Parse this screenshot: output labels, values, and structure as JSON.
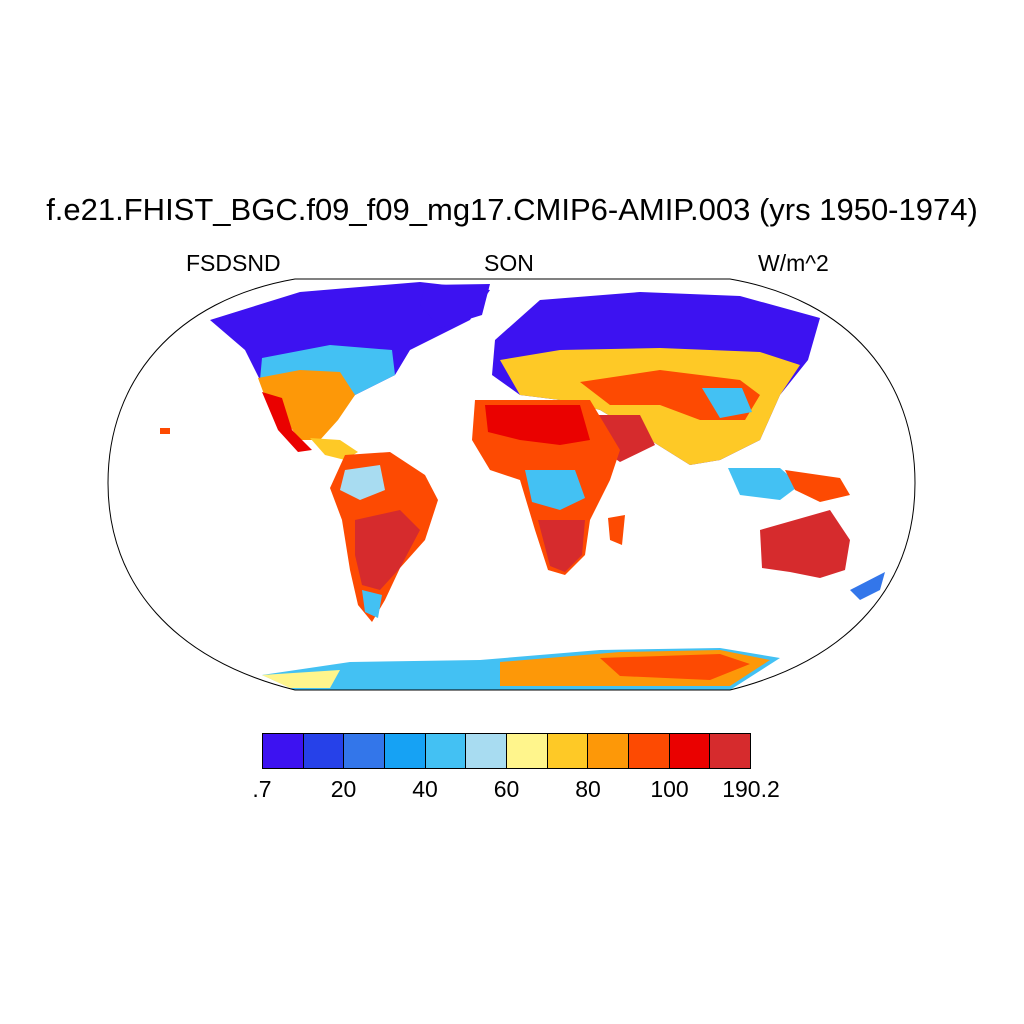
{
  "title": "f.e21.FHIST_BGC.f09_f09_mg17.CMIP6-AMIP.003 (yrs 1950-1974)",
  "subtitle_left": "FSDSND",
  "subtitle_center": "SON",
  "subtitle_right": "W/m^2",
  "colorbar": {
    "colors": [
      "#3d12f1",
      "#2641e9",
      "#3376ea",
      "#16a2f4",
      "#43c1f3",
      "#a8dcf1",
      "#fff58c",
      "#fec926",
      "#fd9808",
      "#fd4a02",
      "#ea0100",
      "#d62b2d"
    ],
    "labels": [
      ".7",
      "20",
      "40",
      "60",
      "80",
      "100",
      "190.2"
    ]
  }
}
